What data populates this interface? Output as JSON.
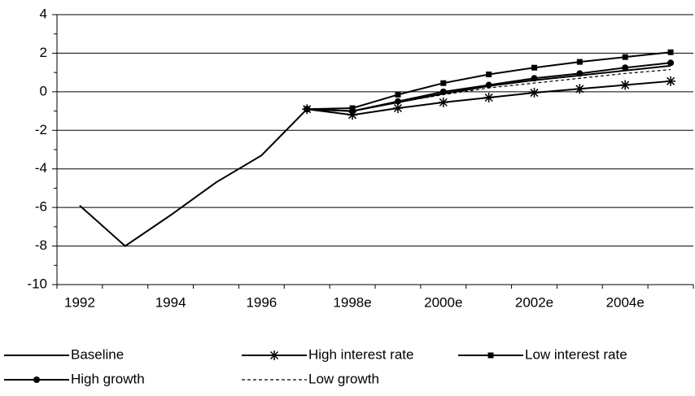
{
  "chart_data": {
    "type": "line",
    "categories": [
      "1992",
      null,
      "1994",
      null,
      "1996",
      null,
      "1998e",
      null,
      "2000e",
      null,
      "2002e",
      null,
      "2004e",
      null
    ],
    "ylim": [
      -10,
      4
    ],
    "yticks": [
      -10,
      -8,
      -6,
      -4,
      -2,
      0,
      2,
      4
    ],
    "grid": true,
    "series": [
      {
        "name": "Baseline",
        "color": "#000000",
        "marker": "none",
        "dash": false,
        "values": [
          -5.9,
          -8.0,
          -6.4,
          -4.7,
          -3.3,
          -0.9,
          -1.0,
          -0.55,
          -0.1,
          0.3,
          0.6,
          0.85,
          1.1,
          1.35
        ]
      },
      {
        "name": "High interest rate",
        "color": "#000000",
        "marker": "star",
        "dash": false,
        "values": [
          null,
          null,
          null,
          null,
          null,
          -0.9,
          -1.2,
          -0.85,
          -0.55,
          -0.3,
          -0.05,
          0.15,
          0.35,
          0.55
        ]
      },
      {
        "name": "Low interest rate",
        "color": "#000000",
        "marker": "square",
        "dash": false,
        "values": [
          null,
          null,
          null,
          null,
          null,
          -0.9,
          -0.85,
          -0.15,
          0.45,
          0.9,
          1.25,
          1.55,
          1.8,
          2.05
        ]
      },
      {
        "name": "High growth",
        "color": "#000000",
        "marker": "circle",
        "dash": false,
        "values": [
          null,
          null,
          null,
          null,
          null,
          -0.9,
          -1.0,
          -0.5,
          0.0,
          0.35,
          0.7,
          0.95,
          1.25,
          1.5
        ]
      },
      {
        "name": "Low growth",
        "color": "#000000",
        "marker": "none",
        "dash": true,
        "values": [
          null,
          null,
          null,
          null,
          null,
          -0.9,
          -1.0,
          -0.55,
          -0.15,
          0.2,
          0.45,
          0.7,
          0.95,
          1.15
        ]
      }
    ]
  }
}
